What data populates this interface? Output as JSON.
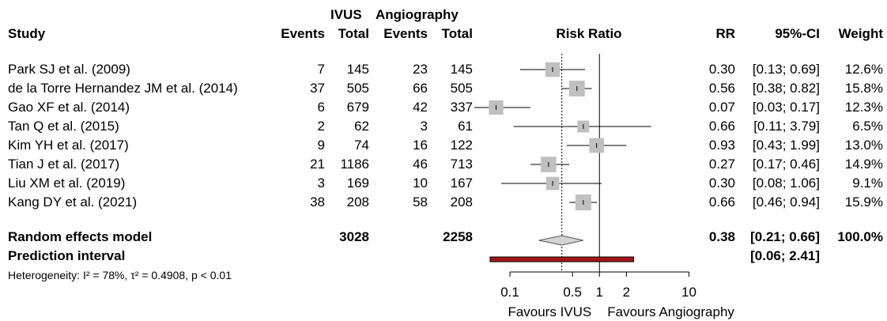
{
  "headers": {
    "study": "Study",
    "group1": "IVUS",
    "group2": "Angiography",
    "events": "Events",
    "total": "Total",
    "plot": "Risk Ratio",
    "rr": "RR",
    "ci": "95%-CI",
    "weight": "Weight"
  },
  "summary": {
    "label": "Random effects model",
    "total1": "3028",
    "total2": "2258",
    "rr": "0.38",
    "ci": "[0.21; 0.66]",
    "weight": "100.0%",
    "prediction_label": "Prediction interval",
    "prediction_ci": "[0.06; 2.41]",
    "heterogeneity": "Heterogeneity: I² = 78%, τ² = 0.4908, p < 0.01"
  },
  "axis": {
    "favours_left": "Favours IVUS",
    "favours_right": "Favours Angiography"
  },
  "colors": {
    "box": "#c0c0c0",
    "diamond": "#d3d3d3",
    "prediction": "#a31515"
  },
  "chart_data": {
    "type": "forest",
    "xscale": "log",
    "xlim": [
      0.04,
      14
    ],
    "ticks": [
      0.1,
      0.5,
      1,
      2,
      10
    ],
    "tick_labels": [
      "0.1",
      "0.5",
      "1",
      "2",
      "10"
    ],
    "null_value": 1,
    "pooled": {
      "rr": 0.38,
      "lo": 0.21,
      "hi": 0.66
    },
    "prediction": {
      "lo": 0.06,
      "hi": 2.41
    },
    "studies": [
      {
        "study": "Park SJ et al. (2009)",
        "e1": "7",
        "n1": "145",
        "e2": "23",
        "n2": "145",
        "rr": 0.3,
        "lo": 0.13,
        "hi": 0.69,
        "weight": 12.6,
        "rr_text": "0.30",
        "ci_text": "[0.13; 0.69]",
        "weight_text": "12.6%"
      },
      {
        "study": "de la Torre Hernandez JM et al. (2014)",
        "e1": "37",
        "n1": "505",
        "e2": "66",
        "n2": "505",
        "rr": 0.56,
        "lo": 0.38,
        "hi": 0.82,
        "weight": 15.8,
        "rr_text": "0.56",
        "ci_text": "[0.38; 0.82]",
        "weight_text": "15.8%"
      },
      {
        "study": "Gao XF et al. (2014)",
        "e1": "6",
        "n1": "679",
        "e2": "42",
        "n2": "337",
        "rr": 0.07,
        "lo": 0.03,
        "hi": 0.17,
        "weight": 12.3,
        "rr_text": "0.07",
        "ci_text": "[0.03; 0.17]",
        "weight_text": "12.3%"
      },
      {
        "study": "Tan Q et al. (2015)",
        "e1": "2",
        "n1": "62",
        "e2": "3",
        "n2": "61",
        "rr": 0.66,
        "lo": 0.11,
        "hi": 3.79,
        "weight": 6.5,
        "rr_text": "0.66",
        "ci_text": "[0.11; 3.79]",
        "weight_text": "6.5%"
      },
      {
        "study": "Kim YH et al. (2017)",
        "e1": "9",
        "n1": "74",
        "e2": "16",
        "n2": "122",
        "rr": 0.93,
        "lo": 0.43,
        "hi": 1.99,
        "weight": 13.0,
        "rr_text": "0.93",
        "ci_text": "[0.43; 1.99]",
        "weight_text": "13.0%"
      },
      {
        "study": "Tian J et al. (2017)",
        "e1": "21",
        "n1": "1186",
        "e2": "46",
        "n2": "713",
        "rr": 0.27,
        "lo": 0.17,
        "hi": 0.46,
        "weight": 14.9,
        "rr_text": "0.27",
        "ci_text": "[0.17; 0.46]",
        "weight_text": "14.9%"
      },
      {
        "study": "Liu XM et al. (2019)",
        "e1": "3",
        "n1": "169",
        "e2": "10",
        "n2": "167",
        "rr": 0.3,
        "lo": 0.08,
        "hi": 1.06,
        "weight": 9.1,
        "rr_text": "0.30",
        "ci_text": "[0.08; 1.06]",
        "weight_text": "9.1%"
      },
      {
        "study": "Kang DY et al. (2021)",
        "e1": "38",
        "n1": "208",
        "e2": "58",
        "n2": "208",
        "rr": 0.66,
        "lo": 0.46,
        "hi": 0.94,
        "weight": 15.9,
        "rr_text": "0.66",
        "ci_text": "[0.46; 0.94]",
        "weight_text": "15.9%"
      }
    ]
  }
}
